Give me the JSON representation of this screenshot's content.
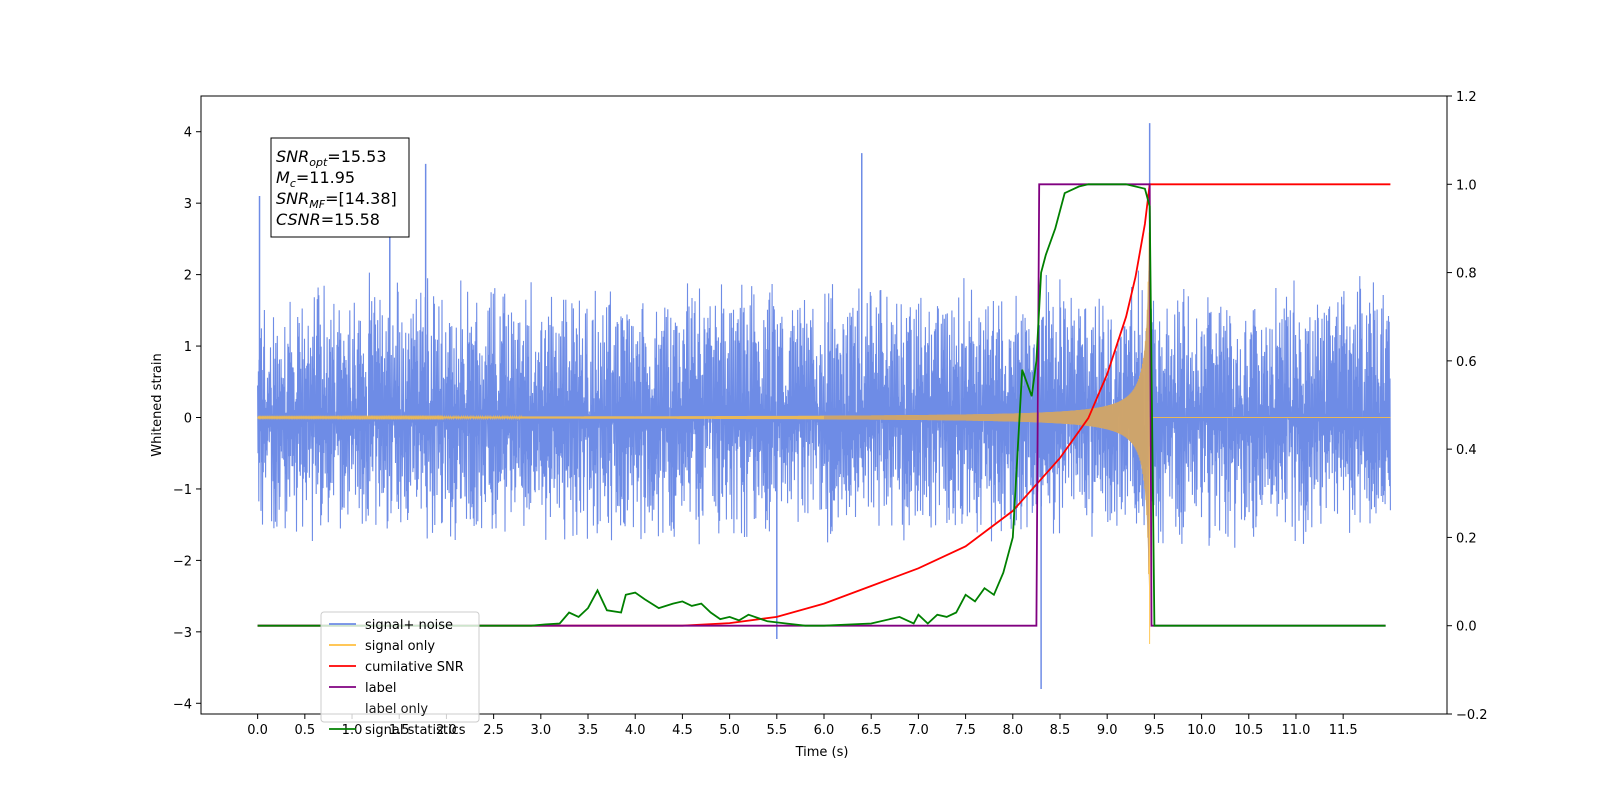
{
  "chart_data": {
    "type": "line",
    "xlabel": "Time (s)",
    "ylabel": "Whitened strain",
    "xlim": [
      -0.6,
      12.6
    ],
    "ylim": [
      -4.15,
      4.5
    ],
    "y2lim": [
      -0.2,
      1.2
    ],
    "xticks": [
      0.0,
      0.5,
      1.0,
      1.5,
      2.0,
      2.5,
      3.0,
      3.5,
      4.0,
      4.5,
      5.0,
      5.5,
      6.0,
      6.5,
      7.0,
      7.5,
      8.0,
      8.5,
      9.0,
      9.5,
      10.0,
      10.5,
      11.0,
      11.5
    ],
    "xtick_labels": [
      "0.0",
      "0.5",
      "1.0",
      "1.5",
      "2.0",
      "2.5",
      "3.0",
      "3.5",
      "4.0",
      "4.5",
      "5.0",
      "5.5",
      "6.0",
      "6.5",
      "7.0",
      "7.5",
      "8.0",
      "8.5",
      "9.0",
      "9.5",
      "10.0",
      "10.5",
      "11.0",
      "11.5"
    ],
    "yticks": [
      -4,
      -3,
      -2,
      -1,
      0,
      1,
      2,
      3,
      4
    ],
    "ytick_labels": [
      "−4",
      "−3",
      "−2",
      "−1",
      "0",
      "1",
      "2",
      "3",
      "4"
    ],
    "y2ticks": [
      -0.2,
      0.0,
      0.2,
      0.4,
      0.6,
      0.8,
      1.0,
      1.2
    ],
    "y2tick_labels": [
      "−0.2",
      "0.0",
      "0.2",
      "0.4",
      "0.6",
      "0.8",
      "1.0",
      "1.2"
    ],
    "grid": false,
    "legend_position": "lower-left",
    "annotation": {
      "lines": [
        {
          "main": "SNR",
          "sub": "opt",
          "rest": "=15.53"
        },
        {
          "main": "M",
          "sub": "c",
          "rest": "=11.95"
        },
        {
          "main": "SNR",
          "sub": "MF",
          "rest": "=[14.38]"
        },
        {
          "main": "CSNR",
          "sub": "",
          "rest": "=15.58"
        }
      ]
    },
    "series": [
      {
        "name": "signal+ noise",
        "axis": "left",
        "color": "#6e8ce6",
        "kind": "noise",
        "x_range": [
          0.0,
          12.0
        ],
        "noise_band": [
          -1.9,
          2.1
        ],
        "peaks": [
          {
            "x": 0.02,
            "y": 3.1
          },
          {
            "x": 1.4,
            "y": 3.3
          },
          {
            "x": 1.78,
            "y": 3.55
          },
          {
            "x": 6.4,
            "y": 3.7
          },
          {
            "x": 9.45,
            "y": 4.12
          },
          {
            "x": 8.3,
            "y": -3.8
          },
          {
            "x": 5.5,
            "y": -3.1
          }
        ]
      },
      {
        "name": "signal only",
        "axis": "left",
        "color": "#ffbf40",
        "kind": "chirp",
        "x_range": [
          0.0,
          12.0
        ],
        "merger_time": 9.45
      },
      {
        "name": "cumilative SNR",
        "axis": "right",
        "color": "#ff0000",
        "x": [
          0.0,
          4.0,
          4.5,
          5.0,
          5.5,
          6.0,
          6.5,
          7.0,
          7.5,
          8.0,
          8.5,
          8.8,
          9.0,
          9.2,
          9.3,
          9.4,
          9.45,
          9.5,
          12.0
        ],
        "y": [
          0.0,
          0.0,
          0.0,
          0.006,
          0.02,
          0.05,
          0.09,
          0.13,
          0.18,
          0.26,
          0.38,
          0.47,
          0.57,
          0.7,
          0.79,
          0.91,
          1.0,
          1.0,
          1.0
        ]
      },
      {
        "name": "label",
        "axis": "right",
        "color": "#800080",
        "x": [
          0.0,
          8.25,
          8.28,
          9.44,
          9.45,
          9.47,
          11.95
        ],
        "y": [
          0.0,
          0.0,
          1.0,
          1.0,
          1.0,
          0.0,
          0.0
        ]
      },
      {
        "name": "label only",
        "axis": "right",
        "color": "#ffffff",
        "x": [
          0.0,
          8.25,
          8.28,
          9.44,
          9.47,
          11.95
        ],
        "y": [
          0.0,
          0.0,
          1.0,
          1.0,
          0.0,
          0.0
        ]
      },
      {
        "name": "signal statistics",
        "axis": "right",
        "color": "#008000",
        "x": [
          0.0,
          2.9,
          3.05,
          3.2,
          3.3,
          3.4,
          3.5,
          3.6,
          3.7,
          3.85,
          3.9,
          4.0,
          4.1,
          4.25,
          4.4,
          4.5,
          4.6,
          4.7,
          4.8,
          4.9,
          5.0,
          5.1,
          5.2,
          5.4,
          5.6,
          5.8,
          6.0,
          6.5,
          6.8,
          6.9,
          6.95,
          7.0,
          7.1,
          7.2,
          7.3,
          7.4,
          7.5,
          7.6,
          7.7,
          7.8,
          7.9,
          8.0,
          8.1,
          8.2,
          8.25,
          8.3,
          8.35,
          8.45,
          8.55,
          8.7,
          8.8,
          9.0,
          9.2,
          9.4,
          9.45,
          9.5,
          11.95
        ],
        "y": [
          0.0,
          0.0,
          0.003,
          0.005,
          0.03,
          0.02,
          0.04,
          0.08,
          0.035,
          0.03,
          0.07,
          0.075,
          0.06,
          0.04,
          0.05,
          0.055,
          0.045,
          0.05,
          0.03,
          0.015,
          0.02,
          0.012,
          0.025,
          0.01,
          0.005,
          0.0,
          0.0,
          0.005,
          0.02,
          0.01,
          0.005,
          0.025,
          0.005,
          0.025,
          0.02,
          0.03,
          0.07,
          0.055,
          0.085,
          0.07,
          0.12,
          0.2,
          0.58,
          0.52,
          0.6,
          0.8,
          0.84,
          0.9,
          0.98,
          0.995,
          1.0,
          1.0,
          1.0,
          0.99,
          0.95,
          0.0,
          0.0
        ]
      }
    ]
  }
}
